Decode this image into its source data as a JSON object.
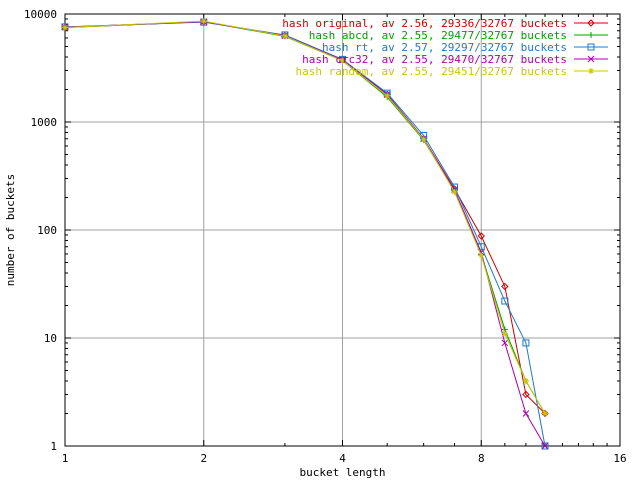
{
  "chart_data": {
    "type": "line",
    "xscale": "log2",
    "yscale": "log10",
    "xlim": [
      1,
      16
    ],
    "ylim": [
      1,
      10000
    ],
    "xticks": [
      "1",
      "2",
      "4",
      "8",
      "16"
    ],
    "yticks": [
      "1",
      "10",
      "100",
      "1000",
      "10000"
    ],
    "xlabel": "bucket length",
    "ylabel": "number of buckets",
    "grid": true,
    "legend_position": "top-right",
    "series": [
      {
        "name": "hash original, av 2.56, 29336/32767 buckets",
        "color": "#cc0000",
        "marker": "diamond",
        "x": [
          1,
          2,
          3,
          4,
          5,
          6,
          7,
          8,
          9,
          10,
          11
        ],
        "y": [
          7500,
          8500,
          6300,
          3800,
          1800,
          700,
          240,
          88,
          30,
          3,
          2
        ]
      },
      {
        "name": "hash abcd, av 2.55, 29477/32767 buckets",
        "color": "#00a000",
        "marker": "plus",
        "x": [
          1,
          2,
          3,
          4,
          5,
          6,
          7,
          8,
          9,
          10,
          11
        ],
        "y": [
          7500,
          8500,
          6200,
          3700,
          1700,
          680,
          230,
          60,
          12,
          4,
          2
        ]
      },
      {
        "name": "hash rt, av 2.57, 29297/32767 buckets",
        "color": "#1e78c8",
        "marker": "square",
        "x": [
          1,
          2,
          3,
          4,
          5,
          6,
          7,
          8,
          9,
          10,
          11
        ],
        "y": [
          7600,
          8400,
          6400,
          3800,
          1850,
          750,
          250,
          70,
          22,
          9,
          1
        ]
      },
      {
        "name": "hash crc32, av 2.55, 29470/32767 buckets",
        "color": "#aa00aa",
        "marker": "x",
        "x": [
          1,
          2,
          3,
          4,
          5,
          6,
          7,
          8,
          9,
          10,
          11
        ],
        "y": [
          7550,
          8500,
          6300,
          3750,
          1800,
          700,
          235,
          62,
          9,
          2,
          1
        ]
      },
      {
        "name": "hash random, av 2.55, 29451/32767 buckets",
        "color": "#c8c800",
        "marker": "star",
        "x": [
          1,
          2,
          3,
          4,
          5,
          6,
          7,
          8,
          9,
          10,
          11
        ],
        "y": [
          7500,
          8600,
          6250,
          3700,
          1750,
          690,
          225,
          58,
          11,
          4,
          2
        ]
      }
    ]
  }
}
